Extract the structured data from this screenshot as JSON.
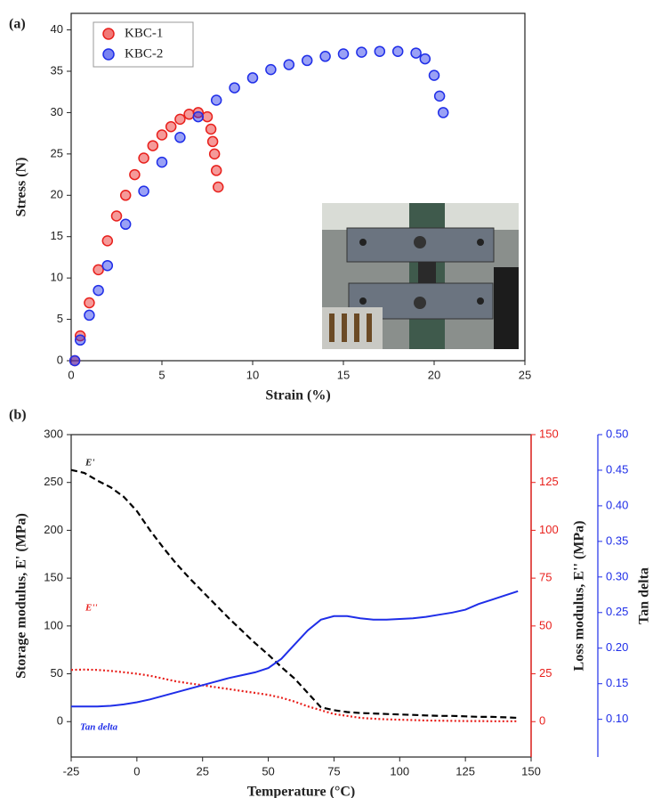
{
  "chart_data": [
    {
      "type": "scatter",
      "panel_label": "(a)",
      "xlabel": "Strain (%)",
      "ylabel": "Stress (N)",
      "xlim": [
        0,
        25
      ],
      "xticks": [
        0,
        5,
        10,
        15,
        20,
        25
      ],
      "ylim": [
        0,
        42
      ],
      "yticks": [
        0,
        5,
        10,
        15,
        20,
        25,
        30,
        35,
        40
      ],
      "legend": "upper left",
      "series": [
        {
          "name": "KBC-1",
          "color": "#e8201c",
          "x": [
            0.2,
            0.5,
            1,
            1.5,
            2,
            2.5,
            3,
            3.5,
            4,
            4.5,
            5,
            5.5,
            6,
            6.5,
            7,
            7.5,
            7.7,
            7.8,
            7.9,
            8.0,
            8.1
          ],
          "values": [
            0,
            3,
            7,
            11,
            14.5,
            17.5,
            20,
            22.5,
            24.5,
            26,
            27.3,
            28.3,
            29.2,
            29.8,
            30,
            29.5,
            28,
            26.5,
            25,
            23,
            21
          ]
        },
        {
          "name": "KBC-2",
          "color": "#1f2ee8",
          "x": [
            0.2,
            0.5,
            1,
            1.5,
            2,
            3,
            4,
            5,
            6,
            7,
            8,
            9,
            10,
            11,
            12,
            13,
            14,
            15,
            16,
            17,
            18,
            19,
            19.5,
            20,
            20.3,
            20.5
          ],
          "values": [
            0,
            2.5,
            5.5,
            8.5,
            11.5,
            16.5,
            20.5,
            24,
            27,
            29.5,
            31.5,
            33,
            34.2,
            35.2,
            35.8,
            36.3,
            36.8,
            37.1,
            37.3,
            37.4,
            37.4,
            37.2,
            36.5,
            34.5,
            32,
            30
          ]
        }
      ]
    },
    {
      "type": "line",
      "panel_label": "(b)",
      "xlabel": "Temperature (°C)",
      "ylabel": "Storage modulus, E' (MPa)",
      "y2label": "Loss modulus, E'' (MPa)",
      "y3label": "Tan delta",
      "annotations": [
        "E'",
        "E''",
        "Tan delta"
      ],
      "xlim": [
        -25,
        150
      ],
      "xticks": [
        -25,
        0,
        25,
        50,
        75,
        100,
        125,
        150
      ],
      "ylim": [
        -37,
        300
      ],
      "yticks": [
        0,
        50,
        100,
        150,
        200,
        250,
        300
      ],
      "y2lim": [
        -18.5,
        150
      ],
      "y2ticks": [
        0,
        25,
        50,
        75,
        100,
        125,
        150
      ],
      "y3lim": [
        0.047,
        0.5
      ],
      "y3ticks": [
        {
          "value": 0.1,
          "label": "0.10"
        },
        0.15,
        {
          "value": 0.2,
          "label": "0.20"
        },
        0.25,
        {
          "value": 0.3,
          "label": "0.30"
        },
        0.35,
        {
          "value": 0.4,
          "label": "0.40"
        },
        0.45,
        {
          "value": 0.5,
          "label": "0.50"
        }
      ],
      "x": [
        -25,
        -20,
        -15,
        -10,
        -5,
        0,
        5,
        10,
        15,
        20,
        25,
        30,
        35,
        40,
        45,
        50,
        55,
        60,
        65,
        70,
        75,
        80,
        85,
        90,
        95,
        100,
        105,
        110,
        115,
        120,
        125,
        130,
        135,
        140,
        145
      ],
      "series": [
        {
          "name": "E'",
          "color": "#000000",
          "style": "dashed",
          "axis": "y",
          "values": [
            263,
            260,
            252,
            245,
            235,
            220,
            200,
            182,
            165,
            150,
            136,
            122,
            108,
            95,
            82,
            70,
            57,
            45,
            30,
            15,
            12,
            10,
            9,
            8.5,
            8,
            7.5,
            7,
            6.5,
            6,
            6,
            5.5,
            5,
            5,
            4.5,
            4
          ]
        },
        {
          "name": "E''",
          "color": "#e8201c",
          "style": "dotted",
          "axis": "y2",
          "values": [
            27,
            27.2,
            27,
            26.5,
            25.8,
            25,
            24,
            22.5,
            21,
            20,
            19,
            18,
            17,
            16,
            15,
            14,
            12.5,
            10.5,
            8,
            6,
            4,
            3,
            2,
            1.5,
            1.2,
            1,
            0.8,
            0.6,
            0.5,
            0.4,
            0.3,
            0.3,
            0.2,
            0.2,
            0.2
          ]
        },
        {
          "name": "Tan delta",
          "color": "#1f2ee8",
          "style": "solid",
          "axis": "y3",
          "values": [
            0.118,
            0.118,
            0.118,
            0.119,
            0.121,
            0.124,
            0.128,
            0.133,
            0.138,
            0.143,
            0.148,
            0.153,
            0.158,
            0.162,
            0.166,
            0.172,
            0.185,
            0.205,
            0.225,
            0.24,
            0.245,
            0.245,
            0.242,
            0.24,
            0.24,
            0.241,
            0.242,
            0.244,
            0.247,
            0.25,
            0.254,
            0.262,
            0.268,
            0.274,
            0.28
          ]
        }
      ]
    }
  ]
}
